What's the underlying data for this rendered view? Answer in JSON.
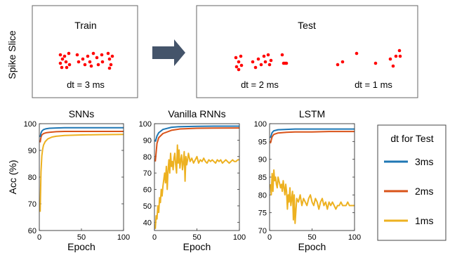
{
  "spike_panel": {
    "ylabel": "Spike Slice",
    "train": {
      "title": "Train",
      "dt_label": "dt = 3 ms"
    },
    "test": {
      "title": "Test",
      "dt2_label": "dt = 2 ms",
      "dt1_label": "dt = 1 ms"
    }
  },
  "legend": {
    "title": "dt for Test",
    "entries": [
      {
        "label": "3ms",
        "color": "#1f77b4"
      },
      {
        "label": "2ms",
        "color": "#d95319"
      },
      {
        "label": "1ms",
        "color": "#edb120"
      }
    ]
  },
  "chart_data": [
    {
      "type": "line",
      "title": "SNNs",
      "xlabel": "Epoch",
      "ylabel": "Acc (%)",
      "xlim": [
        0,
        100
      ],
      "ylim": [
        60,
        100
      ],
      "xticks": [
        0,
        50,
        100
      ],
      "yticks": [
        60,
        70,
        80,
        90,
        100
      ],
      "series": [
        {
          "name": "3ms",
          "color": "#1f77b4",
          "x": [
            1,
            2,
            3,
            5,
            8,
            12,
            20,
            30,
            50,
            70,
            100
          ],
          "values": [
            95,
            96.5,
            97.2,
            97.8,
            98.1,
            98.3,
            98.4,
            98.5,
            98.5,
            98.5,
            98.5
          ]
        },
        {
          "name": "2ms",
          "color": "#d95319",
          "x": [
            1,
            2,
            3,
            5,
            8,
            12,
            20,
            30,
            50,
            70,
            100
          ],
          "values": [
            93,
            95,
            95.8,
            96.3,
            96.6,
            96.8,
            97,
            97.1,
            97.1,
            97.1,
            97.1
          ]
        },
        {
          "name": "1ms",
          "color": "#edb120",
          "x": [
            1,
            2,
            3,
            4,
            5,
            7,
            10,
            15,
            20,
            30,
            50,
            70,
            100
          ],
          "values": [
            67,
            82,
            88,
            90.5,
            92,
            93.3,
            94.3,
            95,
            95.3,
            95.6,
            95.8,
            95.9,
            96
          ]
        }
      ]
    },
    {
      "type": "line",
      "title": "Vanilla RNNs",
      "xlabel": "Epoch",
      "xlim": [
        0,
        100
      ],
      "ylim": [
        35,
        100
      ],
      "xticks": [
        0,
        50,
        100
      ],
      "yticks": [
        40,
        50,
        60,
        70,
        80,
        90,
        100
      ],
      "series": [
        {
          "name": "3ms",
          "color": "#1f77b4",
          "x": [
            1,
            3,
            5,
            10,
            20,
            30,
            50,
            70,
            100
          ],
          "values": [
            89,
            92.5,
            94.5,
            96.5,
            97.8,
            98.2,
            98.4,
            98.5,
            98.5
          ]
        },
        {
          "name": "2ms",
          "color": "#d95319",
          "x": [
            1,
            3,
            5,
            10,
            20,
            30,
            50,
            70,
            100
          ],
          "values": [
            77,
            88,
            91.5,
            94,
            96,
            96.8,
            97.2,
            97.3,
            97.4
          ]
        },
        {
          "name": "1ms",
          "color": "#edb120",
          "x": [
            1,
            2,
            3,
            4,
            5,
            6,
            7,
            8,
            9,
            10,
            11,
            12,
            13,
            14,
            15,
            16,
            17,
            18,
            19,
            20,
            21,
            22,
            23,
            24,
            25,
            26,
            27,
            28,
            29,
            30,
            31,
            32,
            33,
            34,
            35,
            36,
            37,
            38,
            39,
            40,
            42,
            44,
            46,
            48,
            50,
            52,
            54,
            56,
            58,
            60,
            62,
            64,
            66,
            68,
            70,
            72,
            74,
            76,
            78,
            80,
            82,
            84,
            86,
            88,
            90,
            92,
            94,
            96,
            98,
            100
          ],
          "values": [
            36,
            44,
            42,
            50,
            46,
            55,
            52,
            60,
            56,
            62,
            66,
            70,
            64,
            74,
            60,
            72,
            78,
            70,
            82,
            74,
            77,
            72,
            79,
            82,
            75,
            70,
            87,
            76,
            84,
            73,
            78,
            81,
            72,
            76,
            83,
            65,
            80,
            75,
            78,
            82,
            77,
            79,
            76,
            78,
            80,
            76,
            78,
            77,
            79,
            77,
            76,
            78,
            77,
            78,
            77,
            76,
            78,
            77,
            78,
            76,
            77,
            78,
            77,
            76,
            77,
            78,
            77,
            77,
            78,
            78
          ]
        }
      ]
    },
    {
      "type": "line",
      "title": "LSTM",
      "xlabel": "Epoch",
      "xlim": [
        0,
        100
      ],
      "ylim": [
        70,
        100
      ],
      "xticks": [
        0,
        50,
        100
      ],
      "yticks": [
        70,
        75,
        80,
        85,
        90,
        95,
        100
      ],
      "series": [
        {
          "name": "3ms",
          "color": "#1f77b4",
          "x": [
            1,
            3,
            5,
            10,
            20,
            30,
            50,
            70,
            100
          ],
          "values": [
            96,
            97.5,
            98,
            98.3,
            98.4,
            98.5,
            98.5,
            98.5,
            98.5
          ]
        },
        {
          "name": "2ms",
          "color": "#d95319",
          "x": [
            1,
            3,
            5,
            10,
            20,
            30,
            50,
            70,
            100
          ],
          "values": [
            94.5,
            96.3,
            97,
            97.4,
            97.6,
            97.7,
            97.7,
            97.8,
            97.8
          ]
        },
        {
          "name": "1ms",
          "color": "#edb120",
          "x": [
            1,
            2,
            3,
            4,
            5,
            6,
            7,
            8,
            9,
            10,
            11,
            12,
            13,
            14,
            15,
            16,
            17,
            18,
            19,
            20,
            21,
            22,
            23,
            24,
            25,
            26,
            27,
            28,
            29,
            30,
            32,
            34,
            36,
            38,
            40,
            42,
            44,
            46,
            48,
            50,
            52,
            54,
            56,
            58,
            60,
            62,
            64,
            66,
            68,
            70,
            72,
            74,
            76,
            78,
            80,
            82,
            84,
            86,
            88,
            90,
            92,
            94,
            96,
            98,
            100
          ],
          "values": [
            83,
            80,
            86,
            81,
            87,
            84,
            85,
            83,
            82,
            85,
            84,
            83,
            82,
            83,
            81,
            84,
            82,
            80,
            83,
            81,
            76,
            80,
            78,
            82,
            77,
            79,
            81,
            73,
            80,
            72,
            79,
            78,
            80,
            77,
            79,
            78,
            77,
            79,
            80,
            78,
            77,
            79,
            78,
            76,
            78,
            79,
            77,
            78,
            76,
            78,
            77,
            78,
            77,
            76,
            77,
            77,
            78,
            77,
            77,
            77,
            78,
            77,
            77,
            77,
            77
          ]
        }
      ]
    }
  ]
}
